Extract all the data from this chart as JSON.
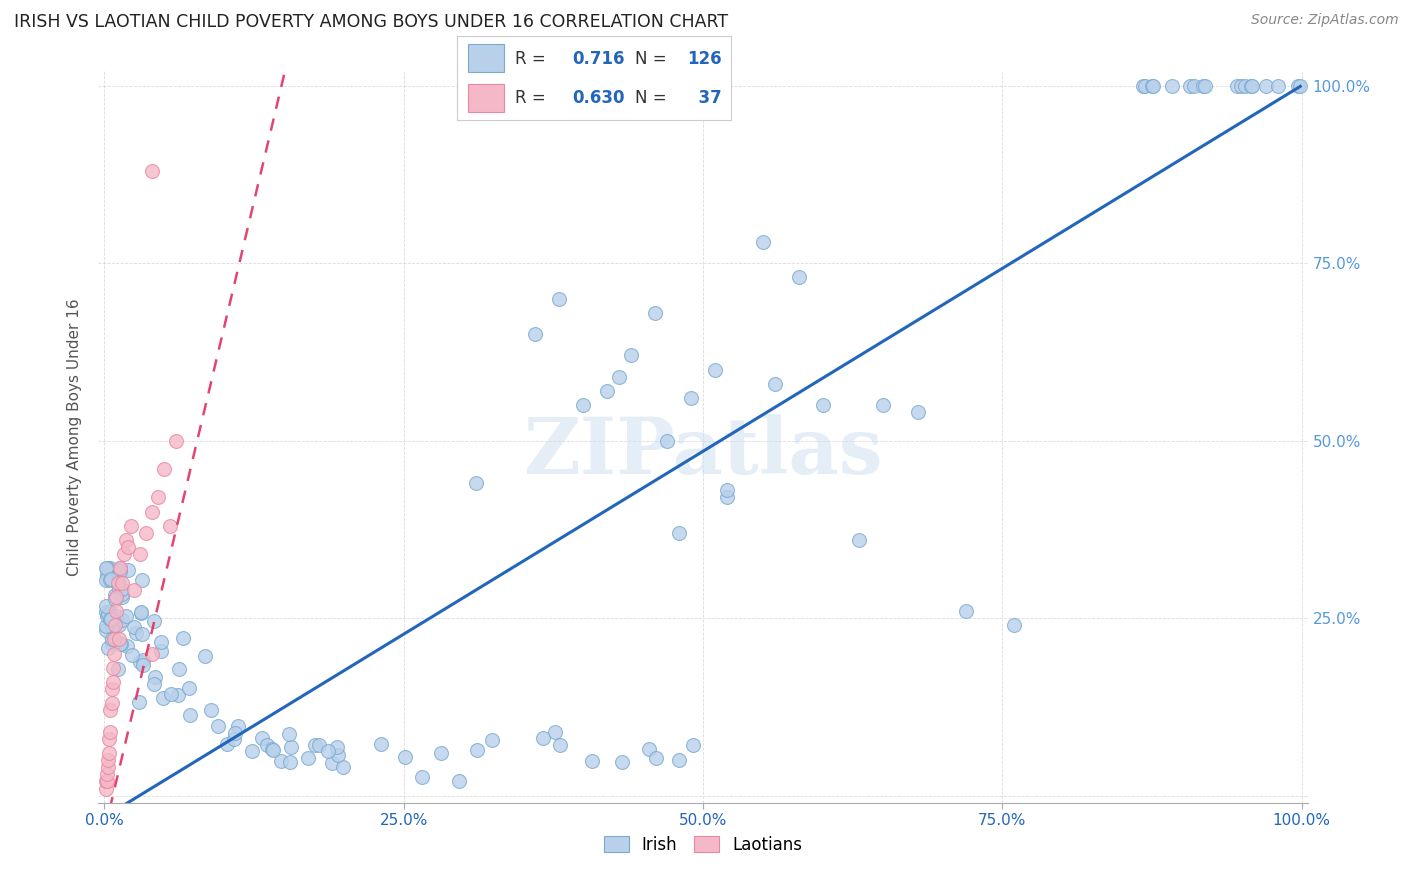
{
  "title": "IRISH VS LAOTIAN CHILD POVERTY AMONG BOYS UNDER 16 CORRELATION CHART",
  "source": "Source: ZipAtlas.com",
  "ylabel": "Child Poverty Among Boys Under 16",
  "watermark": "ZIPatlas",
  "irish_R": 0.716,
  "irish_N": 126,
  "laotian_R": 0.63,
  "laotian_N": 37,
  "irish_fill": "#b8d0ea",
  "irish_edge": "#7aaad0",
  "laotian_fill": "#f5b8c8",
  "laotian_edge": "#e888a0",
  "irish_line_color": "#2266bb",
  "laotian_line_color": "#e03060",
  "grid_color": "#cccccc",
  "right_tick_color": "#5599dd",
  "title_color": "#222222",
  "source_color": "#888888"
}
